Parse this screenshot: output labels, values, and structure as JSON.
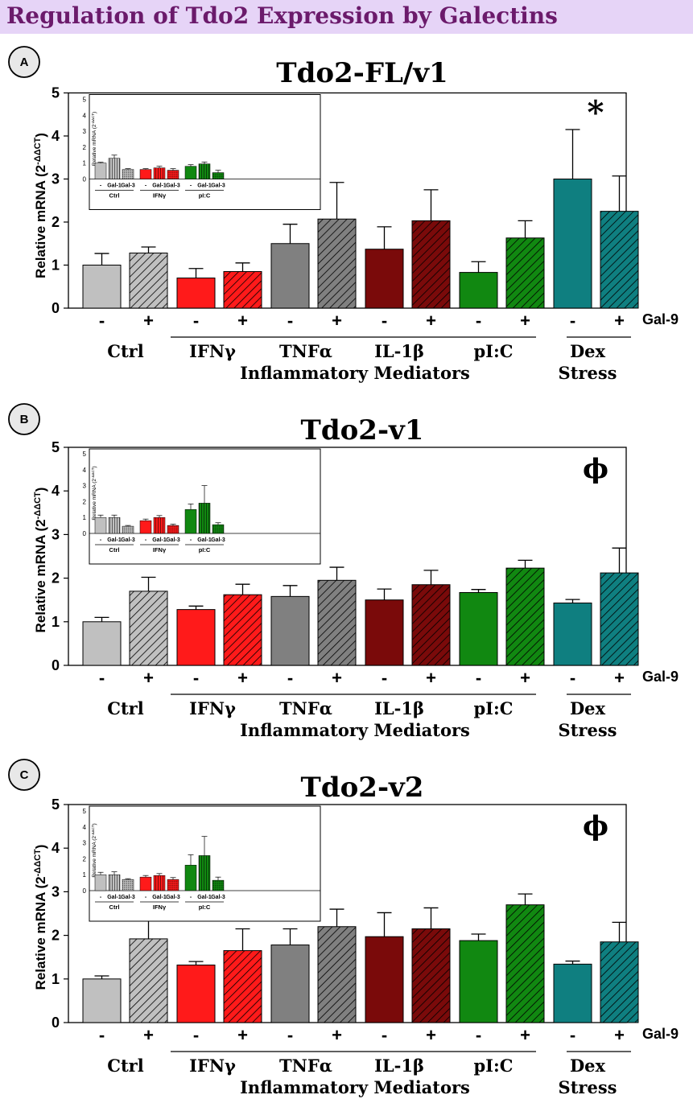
{
  "page_title": "Regulation of Tdo2 Expression by Galectins",
  "ylabel_text": "Relative mRNA (2",
  "ylabel_sup": "-ΔΔCT",
  "ylabel_close": ")",
  "treatment_label": "Gal-9",
  "minus_sign": "-",
  "plus_sign": "+",
  "groups": [
    "Ctrl",
    "IFNγ",
    "TNFα",
    "IL-1β",
    "pI:C",
    "Dex"
  ],
  "group_caption_inflammatory": "Inflammatory Mediators",
  "group_caption_stress": "Stress",
  "inset_groups": [
    "Ctrl",
    "IFNγ",
    "pI:C"
  ],
  "inset_bar_labels": [
    "-",
    "Gal-1",
    "Gal-3"
  ],
  "colors": {
    "Ctrl": "#c0c0c0",
    "IFNγ": "#ff1a1a",
    "TNFα": "#808080",
    "IL-1β": "#7a0a0a",
    "pI:C": "#118811",
    "Dex": "#0f7f80"
  },
  "chart_data": [
    {
      "type": "bar",
      "panel": "A",
      "title": "Tdo2-FL/v1",
      "marker": "*",
      "ylim": [
        0,
        5
      ],
      "yticks": [
        0,
        1,
        2,
        3,
        4,
        5
      ],
      "categories": [
        "Ctrl -",
        "Ctrl +",
        "IFNγ -",
        "IFNγ +",
        "TNFα -",
        "TNFα +",
        "IL-1β -",
        "IL-1β +",
        "pI:C -",
        "pI:C +",
        "Dex -",
        "Dex +"
      ],
      "values": [
        1.0,
        1.28,
        0.7,
        0.85,
        1.5,
        2.07,
        1.37,
        2.03,
        0.83,
        1.63,
        3.0,
        2.25
      ],
      "errors": [
        0.27,
        0.14,
        0.22,
        0.2,
        0.45,
        0.85,
        0.52,
        0.72,
        0.25,
        0.4,
        1.15,
        0.82
      ],
      "inset": {
        "ylim": [
          0,
          5
        ],
        "yticks": [
          0,
          1,
          2,
          3,
          4,
          5
        ],
        "values": [
          1.0,
          1.3,
          0.6,
          0.6,
          0.7,
          0.55,
          0.8,
          0.95,
          0.4
        ],
        "errors": [
          0.05,
          0.2,
          0.05,
          0.05,
          0.1,
          0.1,
          0.1,
          0.12,
          0.15
        ]
      }
    },
    {
      "type": "bar",
      "panel": "B",
      "title": "Tdo2-v1",
      "marker": "ϕ",
      "ylim": [
        0,
        5
      ],
      "yticks": [
        0,
        1,
        2,
        3,
        4,
        5
      ],
      "categories": [
        "Ctrl -",
        "Ctrl +",
        "IFNγ -",
        "IFNγ +",
        "TNFα -",
        "TNFα +",
        "IL-1β -",
        "IL-1β +",
        "pI:C -",
        "pI:C +",
        "Dex -",
        "Dex +"
      ],
      "values": [
        1.0,
        1.7,
        1.28,
        1.62,
        1.58,
        1.95,
        1.5,
        1.85,
        1.67,
        2.23,
        1.43,
        2.12
      ],
      "errors": [
        0.1,
        0.32,
        0.08,
        0.24,
        0.25,
        0.3,
        0.25,
        0.33,
        0.07,
        0.18,
        0.08,
        0.57
      ],
      "inset": {
        "ylim": [
          0,
          5
        ],
        "yticks": [
          0,
          1,
          2,
          3,
          4,
          5
        ],
        "values": [
          1.0,
          1.0,
          0.45,
          0.8,
          1.0,
          0.5,
          1.5,
          1.9,
          0.55
        ],
        "errors": [
          0.15,
          0.15,
          0.05,
          0.1,
          0.12,
          0.08,
          0.35,
          1.1,
          0.12
        ]
      }
    },
    {
      "type": "bar",
      "panel": "C",
      "title": "Tdo2-v2",
      "marker": "ϕ",
      "ylim": [
        0,
        5
      ],
      "yticks": [
        0,
        1,
        2,
        3,
        4,
        5
      ],
      "categories": [
        "Ctrl -",
        "Ctrl +",
        "IFNγ -",
        "IFNγ +",
        "TNFα -",
        "TNFα +",
        "IL-1β -",
        "IL-1β +",
        "pI:C -",
        "pI:C +",
        "Dex -",
        "Dex +"
      ],
      "values": [
        1.0,
        1.92,
        1.32,
        1.65,
        1.78,
        2.2,
        1.97,
        2.15,
        1.88,
        2.7,
        1.34,
        1.85
      ],
      "errors": [
        0.07,
        0.5,
        0.08,
        0.5,
        0.37,
        0.4,
        0.55,
        0.48,
        0.15,
        0.25,
        0.07,
        0.45
      ],
      "inset": {
        "ylim": [
          0,
          5
        ],
        "yticks": [
          0,
          1,
          2,
          3,
          4,
          5
        ],
        "values": [
          1.0,
          1.0,
          0.7,
          0.85,
          0.95,
          0.7,
          1.6,
          2.2,
          0.65
        ],
        "errors": [
          0.15,
          0.18,
          0.05,
          0.1,
          0.12,
          0.12,
          0.65,
          1.2,
          0.2
        ]
      }
    }
  ]
}
